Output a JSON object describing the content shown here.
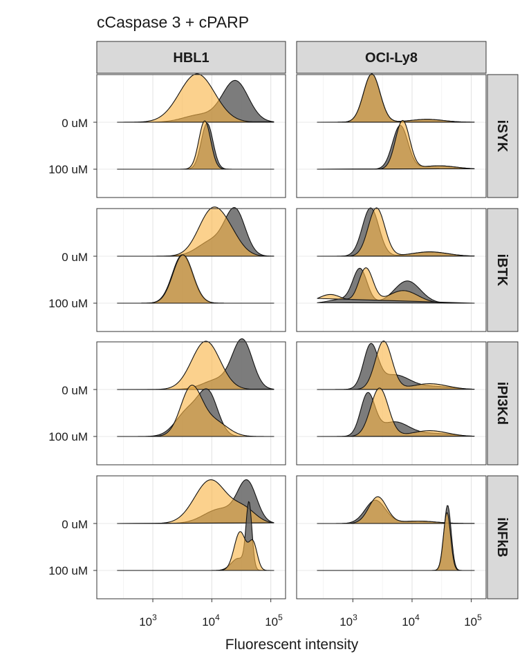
{
  "chart_data": {
    "type": "area",
    "subtype": "ridgeline-density",
    "title": "cCaspase 3 + cPARP",
    "xlabel": "Fluorescent intensity",
    "x_scale": "log10",
    "x_ticks": [
      {
        "base": "10",
        "exp": "3",
        "value": 1000
      },
      {
        "base": "10",
        "exp": "4",
        "value": 10000
      },
      {
        "base": "10",
        "exp": "5",
        "value": 100000
      }
    ],
    "columns": [
      "HBL1",
      "OCI-Ly8"
    ],
    "rows": [
      "iSYK",
      "iBTK",
      "iPI3Kd",
      "iNFkB"
    ],
    "ridges": [
      "0 uM",
      "100 uM"
    ],
    "series_colors": {
      "grey": "#6e6e6e",
      "orange": "#f5a623"
    },
    "grid": true,
    "panels": [
      {
        "row": "iSYK",
        "col": "HBL1",
        "ridges": [
          {
            "label": "0 uM",
            "curves": [
              {
                "color": "grey",
                "peaks": [
                  [
                    4.4,
                    0.22,
                    0.85
                  ],
                  [
                    3.8,
                    0.28,
                    0.15
                  ]
                ]
              },
              {
                "color": "orange",
                "peaks": [
                  [
                    3.75,
                    0.3,
                    1.0
                  ]
                ]
              }
            ]
          },
          {
            "label": "100 uM",
            "curves": [
              {
                "color": "grey",
                "peaks": [
                  [
                    3.92,
                    0.1,
                    0.95
                  ]
                ]
              },
              {
                "color": "orange",
                "peaks": [
                  [
                    3.88,
                    0.1,
                    1.0
                  ]
                ]
              }
            ]
          }
        ]
      },
      {
        "row": "iSYK",
        "col": "OCI-Ly8",
        "ridges": [
          {
            "label": "0 uM",
            "curves": [
              {
                "color": "grey",
                "peaks": [
                  [
                    3.32,
                    0.14,
                    1.0
                  ],
                  [
                    4.25,
                    0.28,
                    0.06
                  ]
                ]
              },
              {
                "color": "orange",
                "peaks": [
                  [
                    3.32,
                    0.14,
                    1.0
                  ],
                  [
                    4.25,
                    0.28,
                    0.06
                  ]
                ]
              }
            ]
          },
          {
            "label": "100 uM",
            "curves": [
              {
                "color": "grey",
                "peaks": [
                  [
                    3.8,
                    0.13,
                    0.9
                  ],
                  [
                    4.45,
                    0.3,
                    0.07
                  ]
                ]
              },
              {
                "color": "orange",
                "peaks": [
                  [
                    3.84,
                    0.12,
                    1.0
                  ],
                  [
                    4.45,
                    0.3,
                    0.07
                  ]
                ]
              }
            ]
          }
        ]
      },
      {
        "row": "iBTK",
        "col": "HBL1",
        "ridges": [
          {
            "label": "0 uM",
            "curves": [
              {
                "color": "grey",
                "peaks": [
                  [
                    4.4,
                    0.17,
                    0.9
                  ],
                  [
                    4.02,
                    0.25,
                    0.32
                  ]
                ]
              },
              {
                "color": "orange",
                "peaks": [
                  [
                    4.0,
                    0.23,
                    0.92
                  ],
                  [
                    4.32,
                    0.2,
                    0.3
                  ]
                ]
              }
            ]
          },
          {
            "label": "100 uM",
            "curves": [
              {
                "color": "grey",
                "peaks": [
                  [
                    3.5,
                    0.17,
                    1.0
                  ]
                ]
              },
              {
                "color": "orange",
                "peaks": [
                  [
                    3.51,
                    0.17,
                    1.0
                  ]
                ]
              }
            ]
          }
        ]
      },
      {
        "row": "iBTK",
        "col": "OCI-Ly8",
        "ridges": [
          {
            "label": "0 uM",
            "curves": [
              {
                "color": "grey",
                "peaks": [
                  [
                    3.3,
                    0.14,
                    1.0
                  ],
                  [
                    4.3,
                    0.3,
                    0.09
                  ]
                ]
              },
              {
                "color": "orange",
                "peaks": [
                  [
                    3.4,
                    0.14,
                    1.0
                  ],
                  [
                    4.3,
                    0.3,
                    0.09
                  ]
                ]
              }
            ]
          },
          {
            "label": "100 uM",
            "curves": [
              {
                "color": "grey",
                "peaks": [
                  [
                    3.12,
                    0.12,
                    0.7
                  ],
                  [
                    3.92,
                    0.22,
                    0.46
                  ],
                  [
                    2.8,
                    0.2,
                    0.08
                  ]
                ]
              },
              {
                "color": "orange",
                "peaks": [
                  [
                    3.22,
                    0.12,
                    0.72
                  ],
                  [
                    3.85,
                    0.25,
                    0.26
                  ],
                  [
                    2.62,
                    0.2,
                    0.18
                  ]
                ]
              }
            ]
          }
        ]
      },
      {
        "row": "iPI3Kd",
        "col": "HBL1",
        "ridges": [
          {
            "label": "0 uM",
            "curves": [
              {
                "color": "grey",
                "peaks": [
                  [
                    4.52,
                    0.17,
                    1.0
                  ],
                  [
                    4.1,
                    0.25,
                    0.2
                  ]
                ]
              },
              {
                "color": "orange",
                "peaks": [
                  [
                    3.9,
                    0.24,
                    1.0
                  ]
                ]
              }
            ]
          },
          {
            "label": "100 uM",
            "curves": [
              {
                "color": "grey",
                "peaks": [
                  [
                    3.95,
                    0.16,
                    0.78
                  ],
                  [
                    3.62,
                    0.22,
                    0.55
                  ]
                ]
              },
              {
                "color": "orange",
                "peaks": [
                  [
                    3.65,
                    0.18,
                    1.0
                  ],
                  [
                    4.05,
                    0.22,
                    0.3
                  ]
                ]
              }
            ]
          }
        ]
      },
      {
        "row": "iPI3Kd",
        "col": "OCI-Ly8",
        "ridges": [
          {
            "label": "0 uM",
            "curves": [
              {
                "color": "grey",
                "peaks": [
                  [
                    3.3,
                    0.12,
                    0.86
                  ],
                  [
                    3.7,
                    0.26,
                    0.3
                  ],
                  [
                    4.4,
                    0.3,
                    0.06
                  ]
                ]
              },
              {
                "color": "orange",
                "peaks": [
                  [
                    3.52,
                    0.14,
                    1.0
                  ],
                  [
                    4.3,
                    0.3,
                    0.12
                  ]
                ]
              }
            ]
          },
          {
            "label": "100 uM",
            "curves": [
              {
                "color": "grey",
                "peaks": [
                  [
                    3.25,
                    0.12,
                    0.85
                  ],
                  [
                    3.7,
                    0.25,
                    0.3
                  ],
                  [
                    4.4,
                    0.3,
                    0.06
                  ]
                ]
              },
              {
                "color": "orange",
                "peaks": [
                  [
                    3.45,
                    0.15,
                    1.0
                  ],
                  [
                    4.3,
                    0.3,
                    0.12
                  ]
                ]
              }
            ]
          }
        ]
      },
      {
        "row": "iNFkB",
        "col": "HBL1",
        "ridges": [
          {
            "label": "0 uM",
            "curves": [
              {
                "color": "grey",
                "peaks": [
                  [
                    4.6,
                    0.16,
                    0.82
                  ],
                  [
                    4.15,
                    0.28,
                    0.3
                  ]
                ]
              },
              {
                "color": "orange",
                "peaks": [
                  [
                    3.98,
                    0.27,
                    0.9
                  ],
                  [
                    4.55,
                    0.2,
                    0.28
                  ]
                ]
              }
            ]
          },
          {
            "label": "100 uM",
            "curves": [
              {
                "color": "grey",
                "peaks": [
                  [
                    4.63,
                    0.05,
                    1.35
                  ],
                  [
                    4.45,
                    0.12,
                    0.25
                  ]
                ]
              },
              {
                "color": "orange",
                "peaks": [
                  [
                    4.48,
                    0.1,
                    0.8
                  ],
                  [
                    4.7,
                    0.07,
                    0.55
                  ]
                ]
              }
            ]
          }
        ]
      },
      {
        "row": "iNFkB",
        "col": "OCI-Ly8",
        "ridges": [
          {
            "label": "0 uM",
            "curves": [
              {
                "color": "grey",
                "peaks": [
                  [
                    3.38,
                    0.17,
                    0.48
                  ],
                  [
                    4.1,
                    0.3,
                    0.05
                  ]
                ]
              },
              {
                "color": "orange",
                "peaks": [
                  [
                    3.42,
                    0.15,
                    0.55
                  ],
                  [
                    4.1,
                    0.3,
                    0.05
                  ]
                ]
              }
            ]
          },
          {
            "label": "100 uM",
            "curves": [
              {
                "color": "grey",
                "peaks": [
                  [
                    4.6,
                    0.06,
                    1.35
                  ]
                ]
              },
              {
                "color": "orange",
                "peaks": [
                  [
                    4.59,
                    0.06,
                    1.2
                  ]
                ]
              }
            ]
          }
        ]
      }
    ]
  }
}
